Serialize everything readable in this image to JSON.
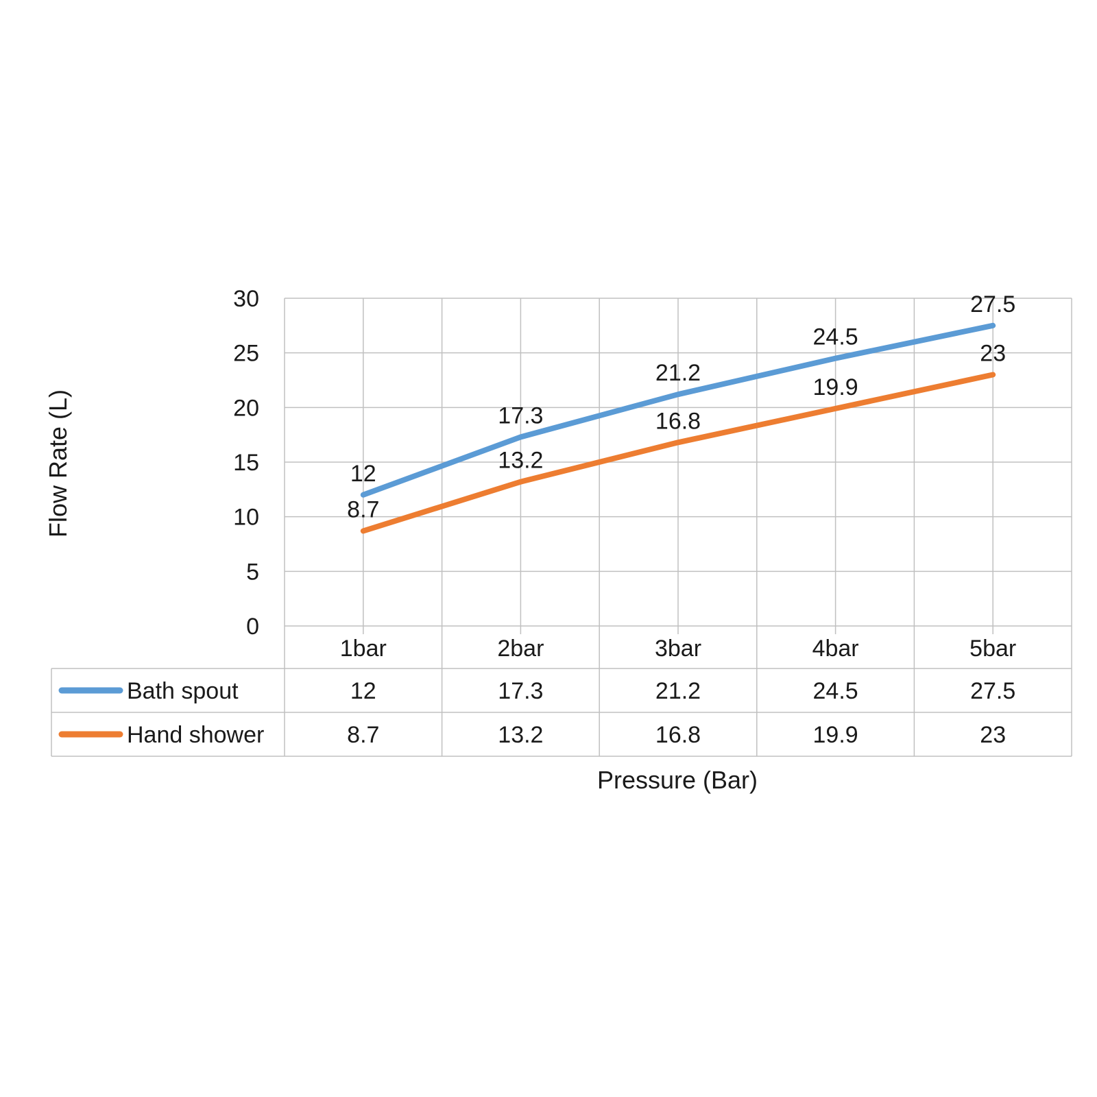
{
  "chart_data": {
    "type": "line",
    "categories": [
      "1bar",
      "2bar",
      "3bar",
      "4bar",
      "5bar"
    ],
    "series": [
      {
        "name": "Bath spout",
        "values": [
          12,
          17.3,
          21.2,
          24.5,
          27.5
        ],
        "color": "#5B9BD5"
      },
      {
        "name": "Hand shower",
        "values": [
          8.7,
          13.2,
          16.8,
          19.9,
          23
        ],
        "color": "#ED7D31"
      }
    ],
    "title": "",
    "xlabel": "Pressure (Bar)",
    "ylabel": "Flow Rate (L)",
    "ylim": [
      0,
      30
    ],
    "yticks": [
      0,
      5,
      10,
      15,
      20,
      25,
      30
    ],
    "grid": true,
    "legend": "data-table",
    "data_labels": true
  }
}
